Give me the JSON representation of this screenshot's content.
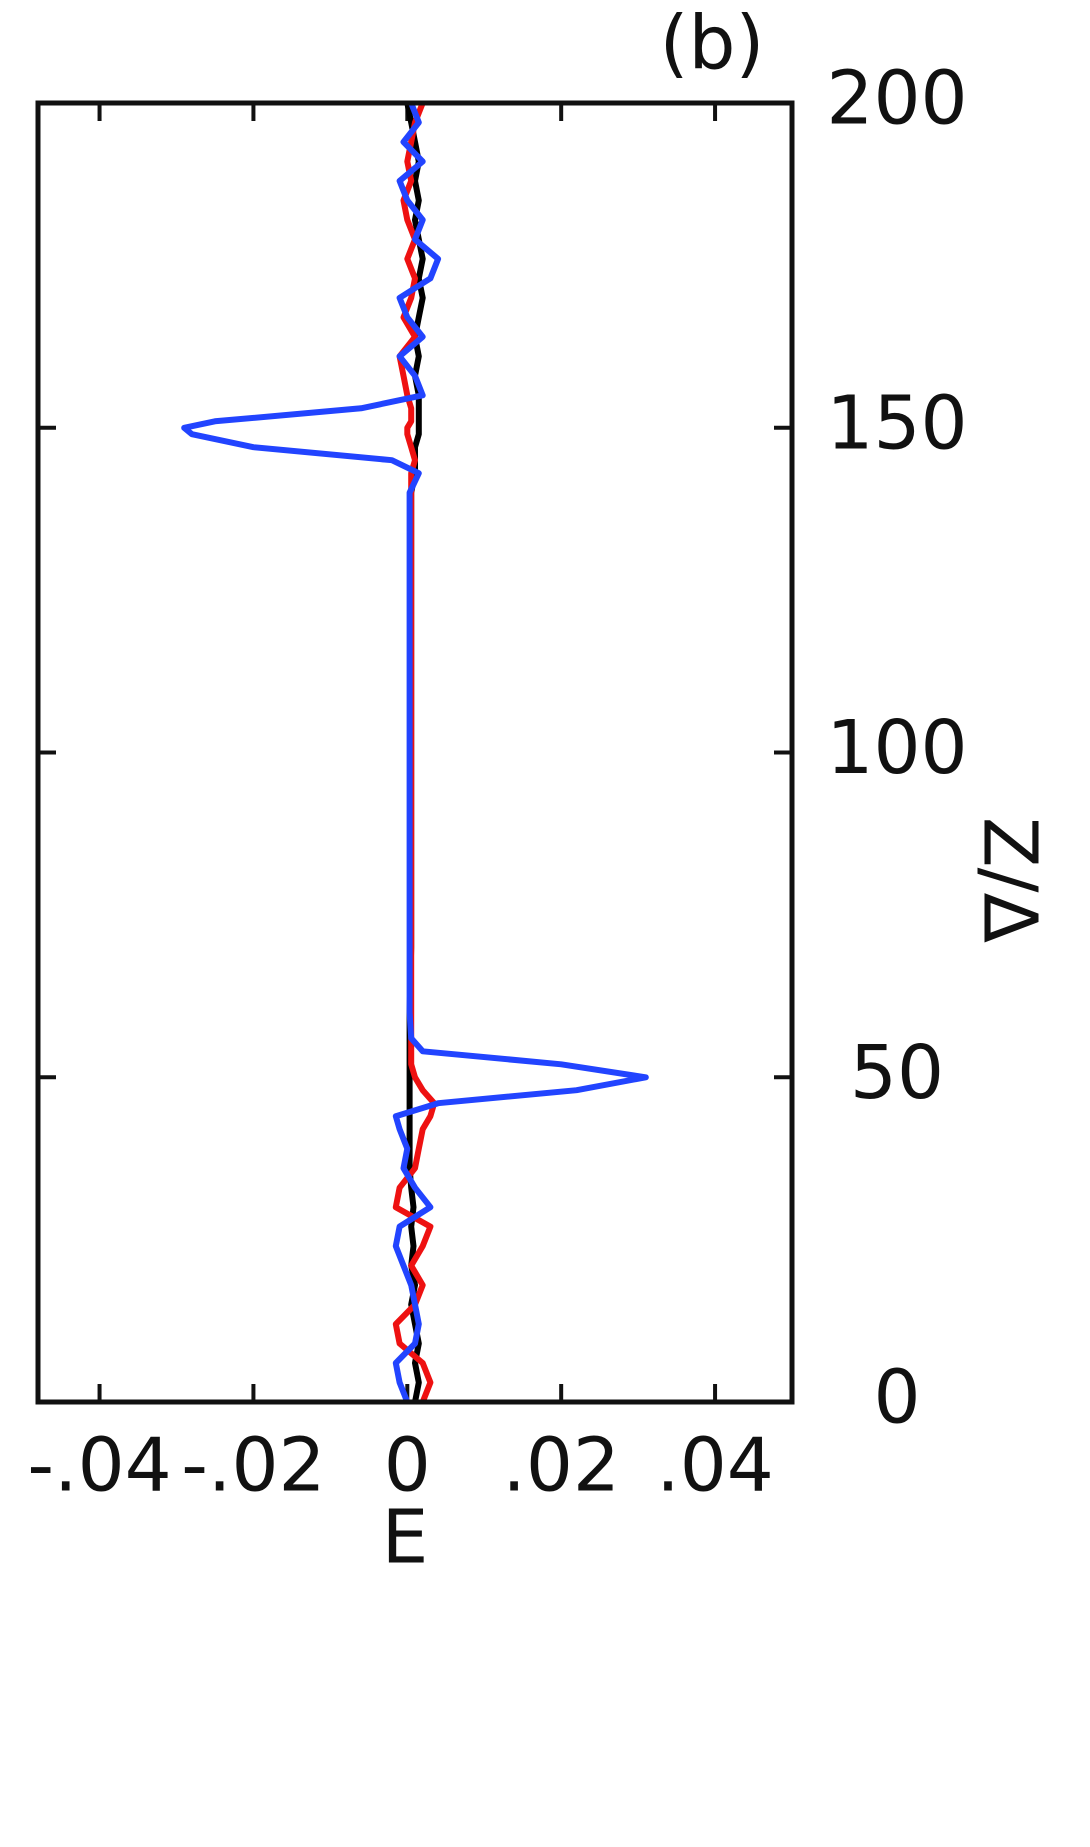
{
  "chart_data": {
    "type": "line",
    "orientation": "vertical",
    "panel_label": "(b)",
    "x_label": "E",
    "y_label": "Z/Δ",
    "z": [
      0,
      3,
      6,
      9,
      12,
      15,
      18,
      21,
      24,
      27,
      30,
      33,
      36,
      39,
      42,
      44,
      46,
      48,
      50,
      52,
      54,
      56,
      60,
      70,
      80,
      90,
      100,
      110,
      120,
      130,
      140,
      143,
      145,
      147,
      149,
      150,
      151,
      153,
      155,
      158,
      161,
      164,
      167,
      170,
      173,
      176,
      179,
      182,
      185,
      188,
      191,
      194,
      197,
      200
    ],
    "series": [
      {
        "color": "#000000",
        "values": [
          0.001,
          0.0015,
          0.001,
          0.0015,
          0.001,
          0.0005,
          0.001,
          0.0005,
          0.0008,
          0.0005,
          0.0008,
          0.0005,
          0.0003,
          0.0003,
          0.0003,
          0.0003,
          0.0003,
          0.0003,
          0.0003,
          0.0003,
          0.0003,
          0.0003,
          0.0003,
          0.0005,
          0.0005,
          0.0005,
          0.0005,
          0.0005,
          0.0005,
          0.0005,
          0.0005,
          0.001,
          0.001,
          0.001,
          0.0015,
          0.0015,
          0.0015,
          0.0015,
          0.0015,
          0.001,
          0.0015,
          0.001,
          0.0015,
          0.002,
          0.0015,
          0.002,
          0.0015,
          0.001,
          0.0015,
          0.001,
          0.0015,
          0.001,
          0.0005,
          0
        ]
      },
      {
        "color": "#ee1111",
        "values": [
          0.002,
          0.003,
          0.002,
          -0.001,
          -0.0015,
          0.001,
          0.002,
          0.0005,
          0.002,
          0.003,
          -0.0015,
          -0.001,
          0.001,
          0.0015,
          0.002,
          0.003,
          0.0035,
          0.002,
          0.001,
          0.0005,
          0.0005,
          0.0005,
          0.0005,
          0.0005,
          0.0005,
          0.0005,
          0.0005,
          0.0005,
          0.0005,
          0.0005,
          0.0005,
          0.0005,
          0.001,
          0.0005,
          0,
          0,
          0.0005,
          0.0005,
          0,
          -0.0005,
          -0.001,
          0.001,
          -0.0005,
          0.0005,
          0.001,
          0,
          0.001,
          0,
          -0.0005,
          0.0005,
          0,
          0.0005,
          0.001,
          0.002
        ]
      },
      {
        "color": "#2244ff",
        "values": [
          0,
          -0.001,
          -0.0015,
          0.001,
          0.0015,
          0.001,
          0.0005,
          -0.0005,
          -0.0015,
          -0.001,
          0.003,
          0.001,
          -0.0005,
          0,
          -0.001,
          -0.0015,
          0.004,
          0.022,
          0.031,
          0.02,
          0.002,
          0.0005,
          0.0003,
          0.0003,
          0.0003,
          0.0003,
          0.0003,
          0.0003,
          0.0003,
          0.0003,
          0.0003,
          0.0015,
          -0.002,
          -0.02,
          -0.028,
          -0.029,
          -0.025,
          -0.006,
          0.002,
          0.001,
          -0.001,
          0.002,
          0,
          -0.001,
          0.003,
          0.004,
          0.001,
          0.002,
          0,
          -0.001,
          0.002,
          -0.0005,
          0.0015,
          0.0005
        ]
      }
    ],
    "xlim": [
      -0.048,
      0.05
    ],
    "xticks": [
      {
        "value": -0.04,
        "label": "-.04"
      },
      {
        "value": -0.02,
        "label": "-.02"
      },
      0,
      {
        "value": 0.02,
        "label": ".02"
      },
      {
        "value": 0.04,
        "label": ".04"
      }
    ],
    "ylim": [
      0,
      200
    ],
    "yticks": [
      0,
      50,
      100,
      150,
      200
    ],
    "y_axis_side": "right"
  }
}
